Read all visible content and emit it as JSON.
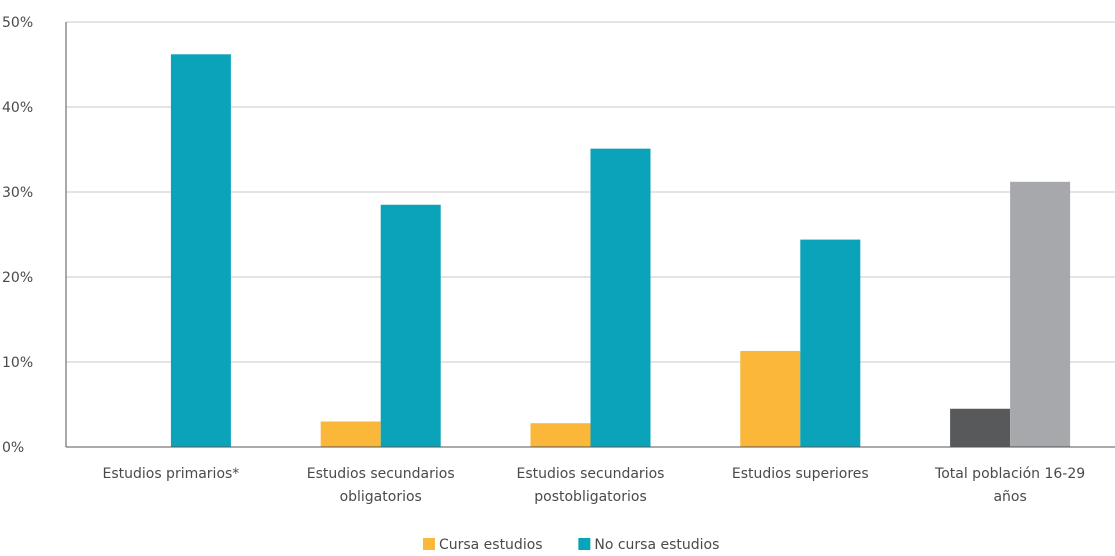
{
  "chart_data": {
    "type": "bar",
    "title": "",
    "xlabel": "",
    "ylabel": "",
    "ylim": [
      0,
      50
    ],
    "yticks": [
      "0%",
      "10%",
      "20%",
      "30%",
      "40%",
      "50%"
    ],
    "ytick_values": [
      0,
      10,
      20,
      30,
      40,
      50
    ],
    "grid": true,
    "legend_position": "bottom-center",
    "categories": [
      [
        "Estudios primarios*"
      ],
      [
        "Estudios secundarios",
        "obligatorios"
      ],
      [
        "Estudios secundarios",
        "postobligatorios"
      ],
      [
        "Estudios superiores"
      ],
      [
        "Total población 16-29",
        "años"
      ]
    ],
    "series": [
      {
        "name": "Cursa estudios",
        "color": "#fbb73a",
        "values": [
          0,
          3.0,
          2.8,
          11.3,
          4.5
        ],
        "point_colors": [
          "#fbb73a",
          "#fbb73a",
          "#fbb73a",
          "#fbb73a",
          "#58595b"
        ]
      },
      {
        "name": "No cursa estudios",
        "color": "#0aa3b9",
        "values": [
          46.2,
          28.5,
          35.1,
          24.4,
          31.2
        ],
        "point_colors": [
          "#0aa3b9",
          "#0aa3b9",
          "#0aa3b9",
          "#0aa3b9",
          "#a6a8ab"
        ]
      }
    ]
  }
}
